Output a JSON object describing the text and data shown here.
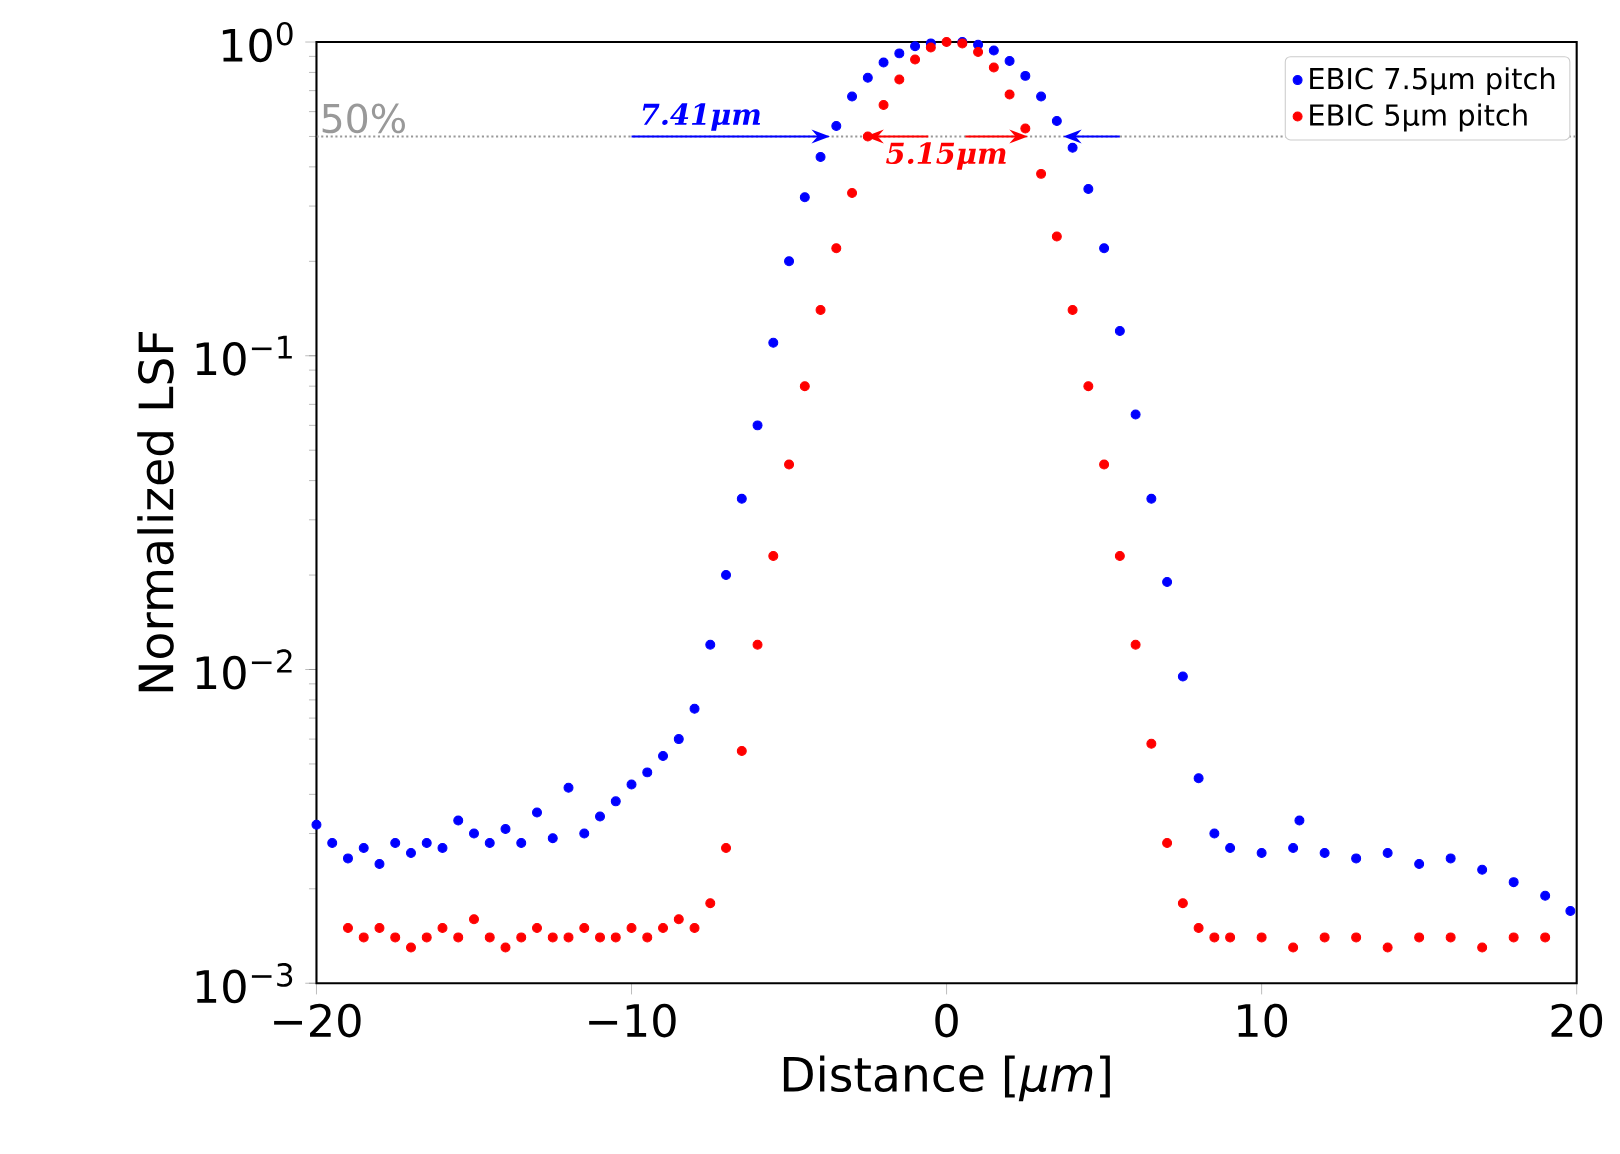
{
  "chart_data": {
    "type": "scatter",
    "xlabel": "Distance [*μm*]",
    "ylabel": "Normalized LSF",
    "log": "y",
    "marker": "circle",
    "legend": "top right",
    "xlim": [
      -20,
      20
    ],
    "ylim": [
      0.001,
      1
    ],
    "xticks": [
      {
        "value": -20,
        "label": "−20"
      },
      {
        "value": -10,
        "label": "−10"
      },
      0,
      10,
      20
    ],
    "yticks": [
      {
        "value": 0.001,
        "label": "10$^{−3}$"
      },
      {
        "value": 0.01,
        "label": "10$^{−2}$"
      },
      {
        "value": 0.1,
        "label": "10$^{−1}$"
      },
      {
        "value": 1,
        "label": "10$^{0}$"
      }
    ],
    "ref_lines": [
      {
        "axis": "y",
        "value": 0.5,
        "label": "50%",
        "color": "#999999",
        "line_style": "dotted"
      }
    ],
    "annotations": [
      {
        "text": "7.41μm",
        "x": -3.7,
        "y": 0.5
      },
      {
        "text": "5.15μm",
        "x": -2.58,
        "y": 0.5
      }
    ],
    "series": [
      {
        "name": "EBIC 7.5μm pitch",
        "color": "#0000ff",
        "x": [
          -20,
          -19.5,
          -19,
          -18.5,
          -18,
          -17.5,
          -17,
          -16.5,
          -16,
          -15.5,
          -15,
          -14.5,
          -14,
          -13.5,
          -13,
          -12.5,
          -12,
          -11.5,
          -11,
          -10.5,
          -10,
          -9.5,
          -9,
          -8.5,
          -8,
          -7.5,
          -7,
          -6.5,
          -6,
          -5.5,
          -5,
          -4.5,
          -4,
          -3.5,
          -3,
          -2.5,
          -2,
          -1.5,
          -1,
          -0.5,
          0,
          0.5,
          1,
          1.5,
          2,
          2.5,
          3,
          3.5,
          4,
          4.5,
          5,
          5.5,
          6,
          6.5,
          7,
          7.5,
          8,
          8.5,
          9,
          10,
          11,
          11.2,
          12,
          13,
          14,
          15,
          16,
          17,
          18,
          19,
          19.8
        ],
        "values": [
          0.0032,
          0.0028,
          0.0025,
          0.0027,
          0.0024,
          0.0028,
          0.0026,
          0.0028,
          0.0027,
          0.0033,
          0.003,
          0.0028,
          0.0031,
          0.0028,
          0.0035,
          0.0029,
          0.0042,
          0.003,
          0.0034,
          0.0038,
          0.0043,
          0.0047,
          0.0053,
          0.006,
          0.0075,
          0.012,
          0.02,
          0.035,
          0.06,
          0.11,
          0.2,
          0.32,
          0.43,
          0.54,
          0.67,
          0.77,
          0.86,
          0.92,
          0.97,
          0.99,
          null,
          1,
          0.98,
          0.94,
          0.87,
          0.78,
          0.67,
          0.56,
          0.46,
          0.34,
          0.22,
          0.12,
          0.065,
          0.035,
          0.019,
          0.0095,
          0.0045,
          0.003,
          0.0027,
          0.0026,
          0.0027,
          0.0033,
          0.0026,
          0.0025,
          0.0026,
          0.0024,
          0.0025,
          0.0023,
          0.0021,
          0.0019,
          0.0017
        ]
      },
      {
        "name": "EBIC 5μm pitch",
        "color": "#ff0000",
        "x": [
          -19,
          -18.5,
          -18,
          -17.5,
          -17,
          -16.5,
          -16,
          -15.5,
          -15,
          -14.5,
          -14,
          -13.5,
          -13,
          -12.5,
          -12,
          -11.5,
          -11,
          -10.5,
          -10,
          -9.5,
          -9,
          -8.5,
          -8,
          -7.5,
          -7,
          -6.5,
          -6,
          -5.5,
          -5,
          -4.5,
          -4,
          -3.5,
          -3,
          -2.5,
          -2,
          -1.5,
          -1,
          -0.5,
          0,
          0.5,
          1,
          1.5,
          2,
          2.5,
          3,
          3.5,
          4,
          4.5,
          5,
          5.5,
          6,
          6.5,
          7,
          7.5,
          8,
          8.5,
          9,
          10,
          11,
          12,
          13,
          14,
          15,
          16,
          17,
          18,
          19
        ],
        "values": [
          0.0015,
          0.0014,
          0.0015,
          0.0014,
          0.0013,
          0.0014,
          0.0015,
          0.0014,
          0.0016,
          0.0014,
          0.0013,
          0.0014,
          0.0015,
          0.0014,
          0.0014,
          0.0015,
          0.0014,
          0.0014,
          0.0015,
          0.0014,
          0.0015,
          0.0016,
          0.0015,
          0.0018,
          0.0027,
          0.0055,
          0.012,
          0.023,
          0.045,
          0.08,
          0.14,
          0.22,
          0.33,
          0.5,
          0.63,
          0.76,
          0.88,
          0.96,
          1,
          0.99,
          0.93,
          0.83,
          0.68,
          0.53,
          0.38,
          0.24,
          0.14,
          0.08,
          0.045,
          0.023,
          0.012,
          0.0058,
          0.0028,
          0.0018,
          0.0015,
          0.0014,
          0.0014,
          0.0014,
          0.0013,
          0.0014,
          0.0014,
          0.0013,
          0.0014,
          0.0014,
          0.0013,
          0.0014,
          0.0014
        ]
      }
    ]
  }
}
